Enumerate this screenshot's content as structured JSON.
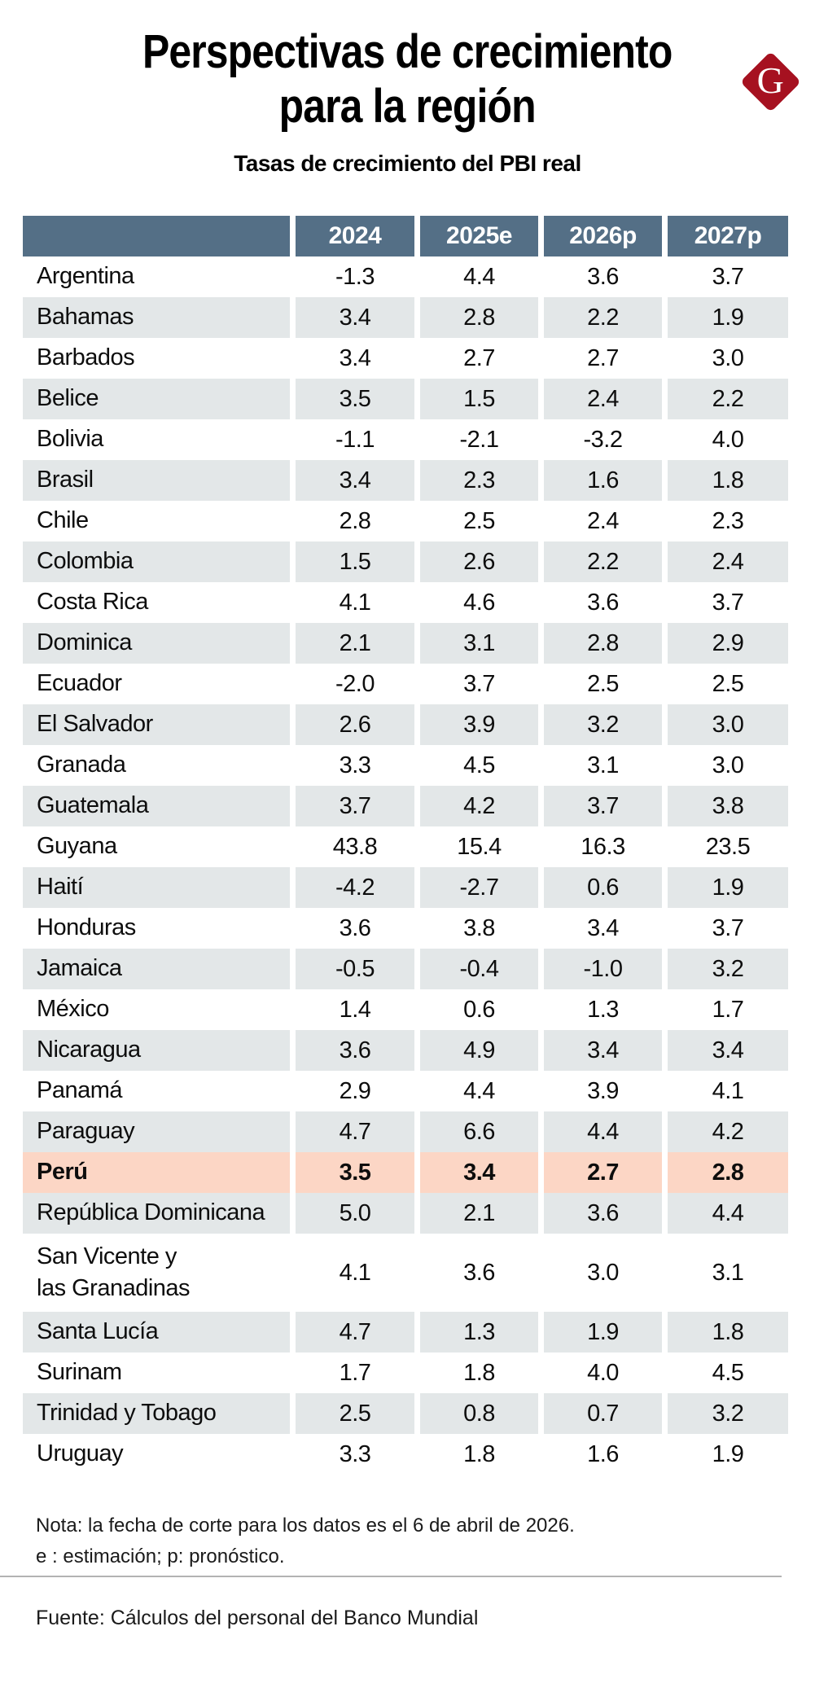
{
  "page": {
    "title_line1": "Perspectivas de crecimiento",
    "title_line2": "para la región",
    "subtitle": "Tasas de crecimiento del PBI real",
    "logo_letter": "G"
  },
  "colors": {
    "header_bg": "#546F86",
    "row_alt_bg": "#E3E7E8",
    "highlight_bg": "#FCD6C5",
    "logo_red": "#A61120",
    "divider": "#B3B3B3"
  },
  "table": {
    "columns": [
      "2024",
      "2025e",
      "2026p",
      "2027p"
    ],
    "rows": [
      {
        "name": "Argentina",
        "values": [
          "-1.3",
          "4.4",
          "3.6",
          "3.7"
        ]
      },
      {
        "name": "Bahamas",
        "values": [
          "3.4",
          "2.8",
          "2.2",
          "1.9"
        ]
      },
      {
        "name": "Barbados",
        "values": [
          "3.4",
          "2.7",
          "2.7",
          "3.0"
        ]
      },
      {
        "name": "Belice",
        "values": [
          "3.5",
          "1.5",
          "2.4",
          "2.2"
        ]
      },
      {
        "name": "Bolivia",
        "values": [
          "-1.1",
          "-2.1",
          "-3.2",
          "4.0"
        ]
      },
      {
        "name": "Brasil",
        "values": [
          "3.4",
          "2.3",
          "1.6",
          "1.8"
        ]
      },
      {
        "name": "Chile",
        "values": [
          "2.8",
          "2.5",
          "2.4",
          "2.3"
        ]
      },
      {
        "name": "Colombia",
        "values": [
          "1.5",
          "2.6",
          "2.2",
          "2.4"
        ]
      },
      {
        "name": "Costa Rica",
        "values": [
          "4.1",
          "4.6",
          "3.6",
          "3.7"
        ]
      },
      {
        "name": "Dominica",
        "values": [
          "2.1",
          "3.1",
          "2.8",
          "2.9"
        ]
      },
      {
        "name": "Ecuador",
        "values": [
          "-2.0",
          "3.7",
          "2.5",
          "2.5"
        ]
      },
      {
        "name": "El Salvador",
        "values": [
          "2.6",
          "3.9",
          "3.2",
          "3.0"
        ]
      },
      {
        "name": "Granada",
        "values": [
          "3.3",
          "4.5",
          "3.1",
          "3.0"
        ]
      },
      {
        "name": "Guatemala",
        "values": [
          "3.7",
          "4.2",
          "3.7",
          "3.8"
        ]
      },
      {
        "name": "Guyana",
        "values": [
          "43.8",
          "15.4",
          "16.3",
          "23.5"
        ]
      },
      {
        "name": "Haití",
        "values": [
          "-4.2",
          "-2.7",
          "0.6",
          "1.9"
        ]
      },
      {
        "name": "Honduras",
        "values": [
          "3.6",
          "3.8",
          "3.4",
          "3.7"
        ]
      },
      {
        "name": "Jamaica",
        "values": [
          "-0.5",
          "-0.4",
          "-1.0",
          "3.2"
        ]
      },
      {
        "name": "México",
        "values": [
          "1.4",
          "0.6",
          "1.3",
          "1.7"
        ]
      },
      {
        "name": "Nicaragua",
        "values": [
          "3.6",
          "4.9",
          "3.4",
          "3.4"
        ]
      },
      {
        "name": "Panamá",
        "values": [
          "2.9",
          "4.4",
          "3.9",
          "4.1"
        ]
      },
      {
        "name": "Paraguay",
        "values": [
          "4.7",
          "6.6",
          "4.4",
          "4.2"
        ]
      },
      {
        "name": "Perú",
        "values": [
          "3.5",
          "3.4",
          "2.7",
          "2.8"
        ],
        "highlight": true
      },
      {
        "name": "República Dominicana",
        "values": [
          "5.0",
          "2.1",
          "3.6",
          "4.4"
        ]
      },
      {
        "name": "San Vicente y las Granadinas",
        "name_display": "San Vicente y\nlas Granadinas",
        "tall": true,
        "values": [
          "4.1",
          "3.6",
          "3.0",
          "3.1"
        ]
      },
      {
        "name": "Santa Lucía",
        "values": [
          "4.7",
          "1.3",
          "1.9",
          "1.8"
        ]
      },
      {
        "name": "Surinam",
        "values": [
          "1.7",
          "1.8",
          "4.0",
          "4.5"
        ]
      },
      {
        "name": "Trinidad y Tobago",
        "values": [
          "2.5",
          "0.8",
          "0.7",
          "3.2"
        ]
      },
      {
        "name": "Uruguay",
        "values": [
          "3.3",
          "1.8",
          "1.6",
          "1.9"
        ]
      }
    ]
  },
  "footer": {
    "note_line1": "Nota: la fecha de corte para los datos es el 6 de abril de 2026.",
    "note_line2": "e : estimación; p: pronóstico.",
    "source": "Fuente: Cálculos del personal del Banco Mundial"
  },
  "chart_data": {
    "type": "table",
    "title": "Perspectivas de crecimiento para la región",
    "subtitle": "Tasas de crecimiento del PBI real",
    "columns": [
      "",
      "2024",
      "2025e",
      "2026p",
      "2027p"
    ],
    "rows": [
      [
        "Argentina",
        -1.3,
        4.4,
        3.6,
        3.7
      ],
      [
        "Bahamas",
        3.4,
        2.8,
        2.2,
        1.9
      ],
      [
        "Barbados",
        3.4,
        2.7,
        2.7,
        3.0
      ],
      [
        "Belice",
        3.5,
        1.5,
        2.4,
        2.2
      ],
      [
        "Bolivia",
        -1.1,
        -2.1,
        -3.2,
        4.0
      ],
      [
        "Brasil",
        3.4,
        2.3,
        1.6,
        1.8
      ],
      [
        "Chile",
        2.8,
        2.5,
        2.4,
        2.3
      ],
      [
        "Colombia",
        1.5,
        2.6,
        2.2,
        2.4
      ],
      [
        "Costa Rica",
        4.1,
        4.6,
        3.6,
        3.7
      ],
      [
        "Dominica",
        2.1,
        3.1,
        2.8,
        2.9
      ],
      [
        "Ecuador",
        -2.0,
        3.7,
        2.5,
        2.5
      ],
      [
        "El Salvador",
        2.6,
        3.9,
        3.2,
        3.0
      ],
      [
        "Granada",
        3.3,
        4.5,
        3.1,
        3.0
      ],
      [
        "Guatemala",
        3.7,
        4.2,
        3.7,
        3.8
      ],
      [
        "Guyana",
        43.8,
        15.4,
        16.3,
        23.5
      ],
      [
        "Haití",
        -4.2,
        -2.7,
        0.6,
        1.9
      ],
      [
        "Honduras",
        3.6,
        3.8,
        3.4,
        3.7
      ],
      [
        "Jamaica",
        -0.5,
        -0.4,
        -1.0,
        3.2
      ],
      [
        "México",
        1.4,
        0.6,
        1.3,
        1.7
      ],
      [
        "Nicaragua",
        3.6,
        4.9,
        3.4,
        3.4
      ],
      [
        "Panamá",
        2.9,
        4.4,
        3.9,
        4.1
      ],
      [
        "Paraguay",
        4.7,
        6.6,
        4.4,
        4.2
      ],
      [
        "Perú",
        3.5,
        3.4,
        2.7,
        2.8
      ],
      [
        "República Dominicana",
        5.0,
        2.1,
        3.6,
        4.4
      ],
      [
        "San Vicente y las Granadinas",
        4.1,
        3.6,
        3.0,
        3.1
      ],
      [
        "Santa Lucía",
        4.7,
        1.3,
        1.9,
        1.8
      ],
      [
        "Surinam",
        1.7,
        1.8,
        4.0,
        4.5
      ],
      [
        "Trinidad y Tobago",
        2.5,
        0.8,
        0.7,
        3.2
      ],
      [
        "Uruguay",
        3.3,
        1.8,
        1.6,
        1.9
      ]
    ],
    "highlighted_row": "Perú",
    "note": "Nota: la fecha de corte para los datos es el 6 de abril de 2026. e : estimación; p: pronóstico.",
    "source": "Fuente: Cálculos del personal del Banco Mundial"
  }
}
